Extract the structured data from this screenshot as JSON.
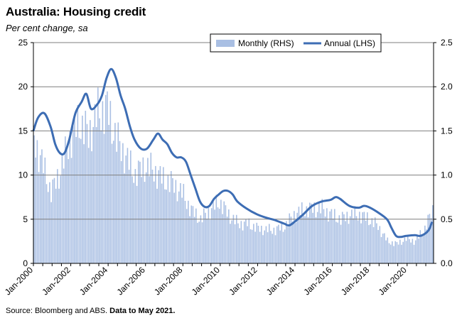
{
  "title": "Australia: Housing credit",
  "subtitle": "Per cent change, sa",
  "source": {
    "text": "Source: Bloomberg and ABS.",
    "note": "Data to May 2021."
  },
  "chart_data": {
    "type": "bar+line",
    "left_axis": {
      "ticks": [
        "0",
        "5",
        "10",
        "15",
        "20",
        "25"
      ],
      "lim": [
        0,
        25
      ]
    },
    "right_axis": {
      "ticks": [
        "0.0",
        "0.5",
        "1.0",
        "1.5",
        "2.0",
        "2.5"
      ],
      "lim": [
        0,
        2.5
      ]
    },
    "x_ticks": [
      "Jan-2000",
      "Jan-2002",
      "Jan-2004",
      "Jan-2006",
      "Jan-2008",
      "Jan-2010",
      "Jan-2012",
      "Jan-2014",
      "Jan-2016",
      "Jan-2018",
      "Jan-2020"
    ],
    "x_range": [
      "Jan-2000",
      "May-2021"
    ],
    "grid": "horizontal",
    "legend_position": "top-right",
    "colors": {
      "bars": "#a9bfe3",
      "line": "#3d6db4",
      "grid": "#7f7f7f"
    },
    "series": [
      {
        "name": "Monthly (RHS)",
        "kind": "bar",
        "axis": "right",
        "anchors": [
          [
            "2000-01",
            1.4
          ],
          [
            "2000-06",
            1.15
          ],
          [
            "2000-12",
            0.8
          ],
          [
            "2001-06",
            1.05
          ],
          [
            "2001-12",
            1.4
          ],
          [
            "2002-06",
            1.6
          ],
          [
            "2002-12",
            1.45
          ],
          [
            "2003-06",
            1.7
          ],
          [
            "2003-12",
            1.75
          ],
          [
            "2004-06",
            1.4
          ],
          [
            "2004-12",
            1.2
          ],
          [
            "2005-06",
            1.0
          ],
          [
            "2005-12",
            1.1
          ],
          [
            "2006-06",
            1.05
          ],
          [
            "2006-12",
            0.95
          ],
          [
            "2007-06",
            0.9
          ],
          [
            "2007-12",
            0.8
          ],
          [
            "2008-06",
            0.6
          ],
          [
            "2008-12",
            0.5
          ],
          [
            "2009-06",
            0.6
          ],
          [
            "2009-12",
            0.7
          ],
          [
            "2010-06",
            0.55
          ],
          [
            "2010-12",
            0.45
          ],
          [
            "2011-06",
            0.45
          ],
          [
            "2011-12",
            0.4
          ],
          [
            "2012-06",
            0.38
          ],
          [
            "2012-12",
            0.38
          ],
          [
            "2013-06",
            0.42
          ],
          [
            "2013-12",
            0.55
          ],
          [
            "2014-06",
            0.6
          ],
          [
            "2014-12",
            0.62
          ],
          [
            "2015-06",
            0.62
          ],
          [
            "2015-12",
            0.55
          ],
          [
            "2016-06",
            0.5
          ],
          [
            "2016-12",
            0.55
          ],
          [
            "2017-06",
            0.55
          ],
          [
            "2017-12",
            0.5
          ],
          [
            "2018-06",
            0.42
          ],
          [
            "2018-12",
            0.25
          ],
          [
            "2019-06",
            0.22
          ],
          [
            "2019-12",
            0.28
          ],
          [
            "2020-06",
            0.25
          ],
          [
            "2020-12",
            0.4
          ],
          [
            "2021-05",
            0.6
          ]
        ]
      },
      {
        "name": "Annual (LHS)",
        "kind": "line",
        "axis": "left",
        "points": [
          [
            "2000-01",
            15.0
          ],
          [
            "2000-04",
            16.5
          ],
          [
            "2000-08",
            17.0
          ],
          [
            "2000-12",
            15.5
          ],
          [
            "2001-03",
            13.5
          ],
          [
            "2001-06",
            12.5
          ],
          [
            "2001-09",
            12.5
          ],
          [
            "2001-12",
            14.0
          ],
          [
            "2002-04",
            17.0
          ],
          [
            "2002-08",
            18.3
          ],
          [
            "2002-11",
            19.2
          ],
          [
            "2003-02",
            17.5
          ],
          [
            "2003-06",
            18.0
          ],
          [
            "2003-09",
            19.0
          ],
          [
            "2003-12",
            21.0
          ],
          [
            "2004-03",
            22.0
          ],
          [
            "2004-06",
            21.0
          ],
          [
            "2004-09",
            19.0
          ],
          [
            "2004-12",
            17.5
          ],
          [
            "2005-03",
            15.5
          ],
          [
            "2005-06",
            14.0
          ],
          [
            "2005-10",
            13.0
          ],
          [
            "2006-02",
            13.0
          ],
          [
            "2006-06",
            14.0
          ],
          [
            "2006-09",
            14.7
          ],
          [
            "2006-12",
            14.0
          ],
          [
            "2007-03",
            13.5
          ],
          [
            "2007-06",
            12.5
          ],
          [
            "2007-09",
            12.0
          ],
          [
            "2007-12",
            12.0
          ],
          [
            "2008-03",
            11.5
          ],
          [
            "2008-06",
            10.0
          ],
          [
            "2008-09",
            8.5
          ],
          [
            "2008-12",
            7.0
          ],
          [
            "2009-03",
            6.4
          ],
          [
            "2009-06",
            6.5
          ],
          [
            "2009-09",
            7.3
          ],
          [
            "2009-12",
            7.8
          ],
          [
            "2010-03",
            8.2
          ],
          [
            "2010-06",
            8.2
          ],
          [
            "2010-09",
            7.8
          ],
          [
            "2010-12",
            7.0
          ],
          [
            "2011-06",
            6.2
          ],
          [
            "2011-12",
            5.6
          ],
          [
            "2012-06",
            5.2
          ],
          [
            "2012-12",
            4.9
          ],
          [
            "2013-06",
            4.5
          ],
          [
            "2013-09",
            4.3
          ],
          [
            "2013-12",
            4.6
          ],
          [
            "2014-06",
            5.5
          ],
          [
            "2014-12",
            6.5
          ],
          [
            "2015-06",
            7.0
          ],
          [
            "2015-12",
            7.2
          ],
          [
            "2016-03",
            7.5
          ],
          [
            "2016-06",
            7.3
          ],
          [
            "2016-12",
            6.5
          ],
          [
            "2017-06",
            6.3
          ],
          [
            "2017-09",
            6.5
          ],
          [
            "2017-12",
            6.4
          ],
          [
            "2018-06",
            5.8
          ],
          [
            "2018-12",
            5.0
          ],
          [
            "2019-03",
            4.0
          ],
          [
            "2019-06",
            3.1
          ],
          [
            "2019-09",
            3.0
          ],
          [
            "2019-12",
            3.1
          ],
          [
            "2020-06",
            3.2
          ],
          [
            "2020-09",
            3.1
          ],
          [
            "2020-12",
            3.3
          ],
          [
            "2021-03",
            3.8
          ],
          [
            "2021-05",
            4.7
          ]
        ]
      }
    ]
  }
}
